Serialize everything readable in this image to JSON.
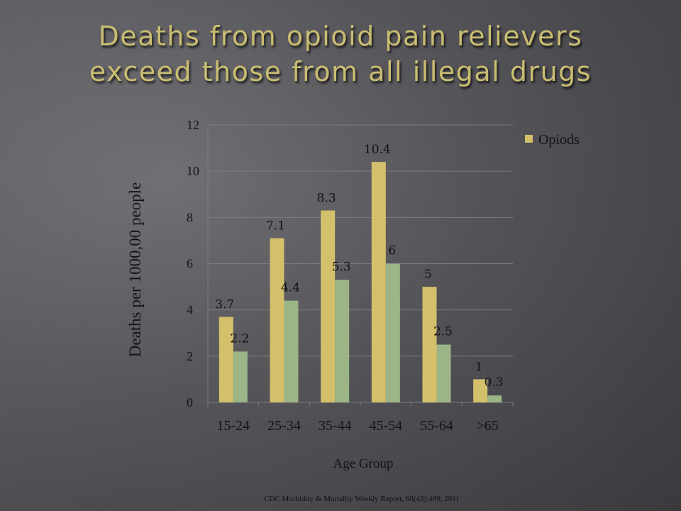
{
  "slide": {
    "title_line1": "Deaths from opioid pain relievers",
    "title_line2": "exceed those from all illegal drugs",
    "source": "CDC Morbidity & Mortality Weekly Report, 60(43):489, 2011"
  },
  "colors": {
    "opioids": "#d4c06a",
    "second_series": "#9cb587",
    "title": "#c9bd72"
  },
  "chart_data": {
    "type": "bar",
    "xlabel": "Age Group",
    "ylabel": "Deaths per 1000,00 people",
    "ylim": [
      0,
      12
    ],
    "yticks": [
      0,
      2,
      4,
      6,
      8,
      10,
      12
    ],
    "grid": true,
    "legend_position": "top-right",
    "categories": [
      "15-24",
      "25-34",
      "35-44",
      "45-54",
      "55-64",
      ">65"
    ],
    "series": [
      {
        "name": "Opiods",
        "values": [
          3.7,
          7.1,
          8.3,
          10.4,
          5,
          1
        ]
      },
      {
        "values": [
          2.2,
          4.4,
          5.3,
          6,
          2.5,
          0.3
        ]
      }
    ]
  }
}
